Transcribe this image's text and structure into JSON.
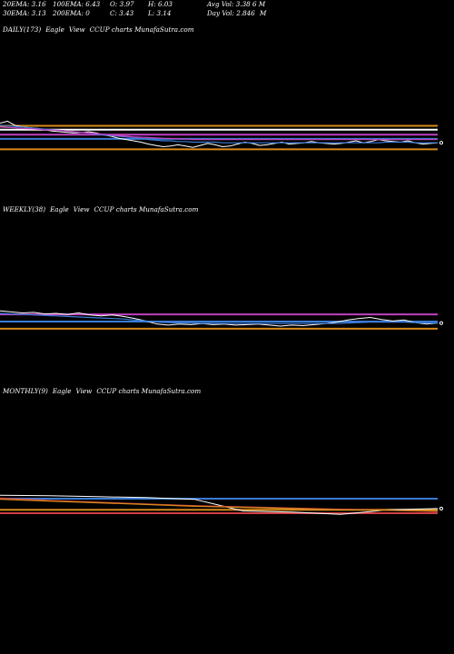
{
  "header": {
    "row1": {
      "ema20": "20EMA: 3.16",
      "ema100": "100EMA: 6.43",
      "open": "O: 3.97",
      "high": "H: 6.03",
      "avg_vol": "Avg Vol: 3.38",
      "avg_vol_unit": "6  M"
    },
    "row2": {
      "ema30": "30EMA: 3.13",
      "ema200": "200EMA: 0",
      "close": "C: 3.43",
      "low": "L: 3.14",
      "day_vol": "Day Vol: 2.846",
      "day_vol_unit": "M"
    }
  },
  "panels": {
    "daily": {
      "period": "DAILY(173)",
      "brand": "Eagle",
      "view": "View",
      "text": "CCUP charts MunafaSutra.com"
    },
    "weekly": {
      "period": "WEEKLY(38)",
      "brand": "Eagle",
      "view": "View",
      "text": "CCUP charts MunafaSutra.com"
    },
    "monthly": {
      "period": "MONTHLY(9)",
      "brand": "Eagle",
      "view": "View",
      "text": "CCUP charts MunafaSutra.com"
    }
  },
  "colors": {
    "background": "#000000",
    "price": "#ffffff",
    "ema_short": "#3a7bd5",
    "ema_mid": "#c040c0",
    "ema_long": "#d88a1c",
    "ema_red": "#d04040"
  },
  "chart_data": [
    {
      "type": "line",
      "name": "daily",
      "ylim": [
        0,
        100
      ],
      "hlines": [
        {
          "y": 82,
          "color": "#d88a1c"
        },
        {
          "y": 70,
          "color": "#ffffff"
        },
        {
          "y": 55,
          "color": "#c040c0"
        },
        {
          "y": 42,
          "color": "#3a7bd5"
        },
        {
          "y": 10,
          "color": "#d88a1c"
        }
      ],
      "series": [
        {
          "color": "#ffffff",
          "values": [
            90,
            96,
            84,
            78,
            76,
            74,
            70,
            66,
            64,
            62,
            60,
            62,
            64,
            60,
            54,
            50,
            44,
            40,
            36,
            32,
            26,
            22,
            18,
            20,
            24,
            20,
            16,
            22,
            28,
            24,
            18,
            20,
            26,
            32,
            28,
            22,
            24,
            28,
            32,
            26,
            28,
            30,
            34,
            30,
            28,
            26,
            28,
            32,
            36,
            30,
            34,
            40,
            36,
            34,
            32,
            36,
            30,
            26,
            28,
            30
          ]
        },
        {
          "color": "#3a7bd5",
          "values": [
            84,
            82,
            80,
            78,
            76,
            74,
            72,
            70,
            68,
            66,
            64,
            62,
            60,
            56,
            54,
            52,
            50,
            48,
            46,
            44,
            40,
            38,
            36,
            36,
            34,
            34,
            32,
            32,
            32,
            32,
            30,
            30,
            30,
            30,
            30,
            30,
            30,
            30,
            30,
            30,
            30,
            30,
            30,
            30,
            30,
            30,
            30,
            30,
            30,
            30,
            30,
            30,
            32,
            32,
            32,
            32,
            30,
            30,
            30,
            30
          ]
        },
        {
          "color": "#c040c0",
          "values": [
            78,
            77,
            76,
            74,
            73,
            72,
            70,
            69,
            68,
            66,
            64,
            62,
            60,
            58,
            56,
            54,
            52,
            50,
            48,
            47,
            46,
            45,
            44,
            43,
            42,
            41,
            40,
            40,
            40,
            40,
            40,
            40,
            40,
            40,
            40,
            40,
            40,
            40,
            40,
            40,
            40,
            40,
            40,
            40,
            40,
            40,
            40,
            40,
            40,
            40,
            40,
            40,
            40,
            40,
            40,
            40,
            40,
            40,
            40,
            40
          ]
        }
      ]
    },
    {
      "type": "line",
      "name": "weekly",
      "ylim": [
        0,
        100
      ],
      "hlines": [
        {
          "y": 78,
          "color": "#c040c0"
        },
        {
          "y": 50,
          "color": "#3a7bd5"
        },
        {
          "y": 22,
          "color": "#d88a1c"
        }
      ],
      "series": [
        {
          "color": "#ffffff",
          "values": [
            92,
            88,
            84,
            86,
            80,
            82,
            78,
            84,
            76,
            72,
            76,
            70,
            62,
            52,
            40,
            36,
            40,
            38,
            42,
            38,
            40,
            36,
            38,
            40,
            36,
            32,
            36,
            34,
            38,
            42,
            48,
            56,
            62,
            66,
            58,
            52,
            56,
            46,
            40,
            44
          ]
        },
        {
          "color": "#3a7bd5",
          "values": [
            82,
            80,
            78,
            76,
            74,
            72,
            70,
            68,
            66,
            64,
            62,
            60,
            56,
            52,
            48,
            46,
            44,
            44,
            43,
            43,
            42,
            42,
            42,
            42,
            42,
            42,
            42,
            42,
            42,
            42,
            42,
            44,
            46,
            48,
            48,
            48,
            48,
            46,
            44,
            44
          ]
        }
      ]
    },
    {
      "type": "line",
      "name": "monthly",
      "ylim": [
        0,
        100
      ],
      "hlines": [
        {
          "y": 78,
          "color": "#3a7bd5"
        },
        {
          "y": 40,
          "color": "#d88a1c"
        },
        {
          "y": 28,
          "color": "#d04040"
        }
      ],
      "series": [
        {
          "color": "#ffffff",
          "values": [
            90,
            88,
            85,
            82,
            76,
            36,
            32,
            24,
            40,
            44
          ]
        },
        {
          "color": "#d04040",
          "values": [
            80,
            72,
            66,
            60,
            54,
            50,
            46,
            42,
            38,
            34
          ]
        },
        {
          "color": "#d88a1c",
          "values": [
            76,
            70,
            64,
            58,
            52,
            48,
            44,
            40,
            38,
            36
          ]
        }
      ]
    }
  ]
}
